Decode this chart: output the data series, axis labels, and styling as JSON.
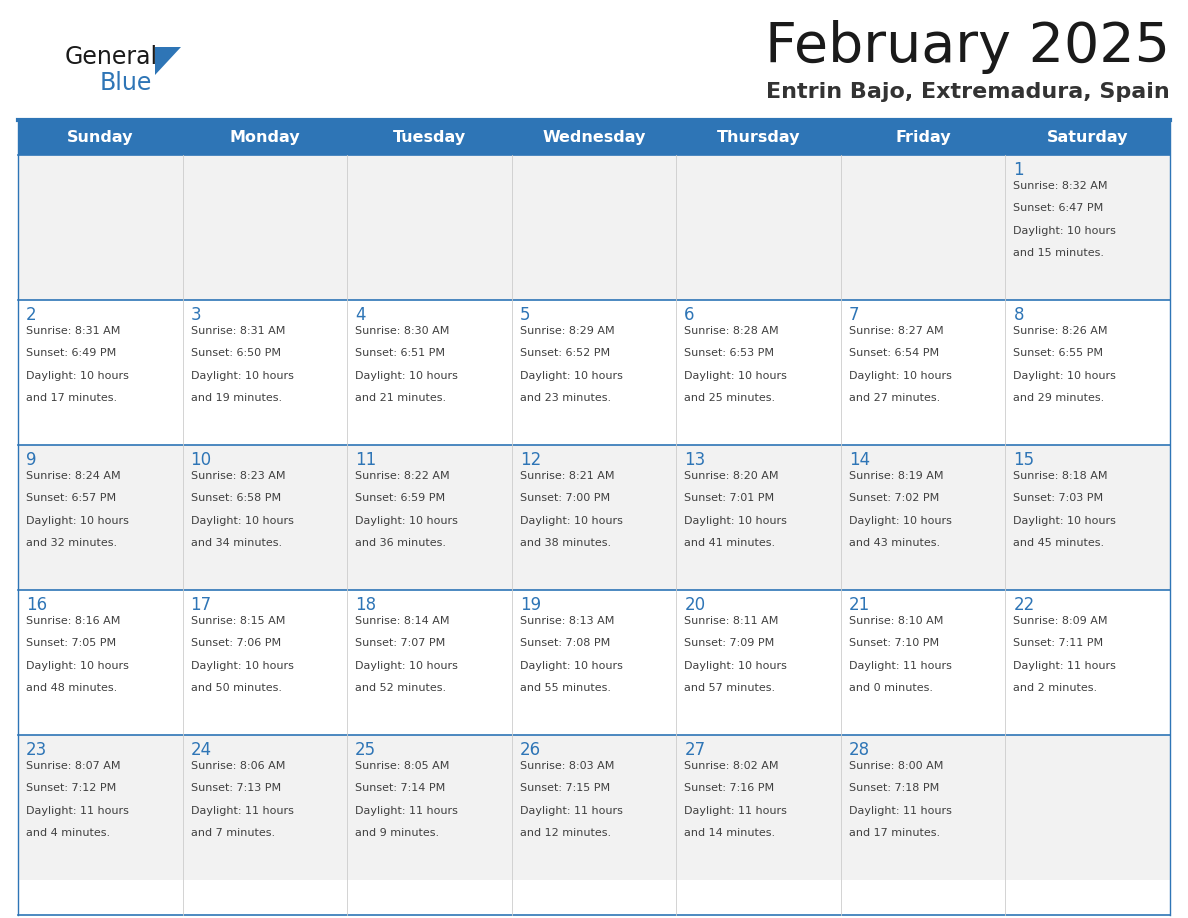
{
  "title": "February 2025",
  "subtitle": "Entrin Bajo, Extremadura, Spain",
  "days_of_week": [
    "Sunday",
    "Monday",
    "Tuesday",
    "Wednesday",
    "Thursday",
    "Friday",
    "Saturday"
  ],
  "header_bg": "#2E75B6",
  "header_text_color": "#FFFFFF",
  "row_odd_bg": "#F2F2F2",
  "row_even_bg": "#FFFFFF",
  "cell_border_color": "#2E75B6",
  "day_number_color": "#2E75B6",
  "cell_text_color": "#404040",
  "title_color": "#1A1A1A",
  "subtitle_color": "#333333",
  "logo_general_color": "#1A1A1A",
  "logo_blue_color": "#2E75B6",
  "logo_triangle_color": "#2E75B6",
  "calendar_data": [
    [
      {
        "day": null,
        "sunrise": null,
        "sunset": null,
        "daylight_line1": null,
        "daylight_line2": null
      },
      {
        "day": null,
        "sunrise": null,
        "sunset": null,
        "daylight_line1": null,
        "daylight_line2": null
      },
      {
        "day": null,
        "sunrise": null,
        "sunset": null,
        "daylight_line1": null,
        "daylight_line2": null
      },
      {
        "day": null,
        "sunrise": null,
        "sunset": null,
        "daylight_line1": null,
        "daylight_line2": null
      },
      {
        "day": null,
        "sunrise": null,
        "sunset": null,
        "daylight_line1": null,
        "daylight_line2": null
      },
      {
        "day": null,
        "sunrise": null,
        "sunset": null,
        "daylight_line1": null,
        "daylight_line2": null
      },
      {
        "day": "1",
        "sunrise": "Sunrise: 8:32 AM",
        "sunset": "Sunset: 6:47 PM",
        "daylight_line1": "Daylight: 10 hours",
        "daylight_line2": "and 15 minutes."
      }
    ],
    [
      {
        "day": "2",
        "sunrise": "Sunrise: 8:31 AM",
        "sunset": "Sunset: 6:49 PM",
        "daylight_line1": "Daylight: 10 hours",
        "daylight_line2": "and 17 minutes."
      },
      {
        "day": "3",
        "sunrise": "Sunrise: 8:31 AM",
        "sunset": "Sunset: 6:50 PM",
        "daylight_line1": "Daylight: 10 hours",
        "daylight_line2": "and 19 minutes."
      },
      {
        "day": "4",
        "sunrise": "Sunrise: 8:30 AM",
        "sunset": "Sunset: 6:51 PM",
        "daylight_line1": "Daylight: 10 hours",
        "daylight_line2": "and 21 minutes."
      },
      {
        "day": "5",
        "sunrise": "Sunrise: 8:29 AM",
        "sunset": "Sunset: 6:52 PM",
        "daylight_line1": "Daylight: 10 hours",
        "daylight_line2": "and 23 minutes."
      },
      {
        "day": "6",
        "sunrise": "Sunrise: 8:28 AM",
        "sunset": "Sunset: 6:53 PM",
        "daylight_line1": "Daylight: 10 hours",
        "daylight_line2": "and 25 minutes."
      },
      {
        "day": "7",
        "sunrise": "Sunrise: 8:27 AM",
        "sunset": "Sunset: 6:54 PM",
        "daylight_line1": "Daylight: 10 hours",
        "daylight_line2": "and 27 minutes."
      },
      {
        "day": "8",
        "sunrise": "Sunrise: 8:26 AM",
        "sunset": "Sunset: 6:55 PM",
        "daylight_line1": "Daylight: 10 hours",
        "daylight_line2": "and 29 minutes."
      }
    ],
    [
      {
        "day": "9",
        "sunrise": "Sunrise: 8:24 AM",
        "sunset": "Sunset: 6:57 PM",
        "daylight_line1": "Daylight: 10 hours",
        "daylight_line2": "and 32 minutes."
      },
      {
        "day": "10",
        "sunrise": "Sunrise: 8:23 AM",
        "sunset": "Sunset: 6:58 PM",
        "daylight_line1": "Daylight: 10 hours",
        "daylight_line2": "and 34 minutes."
      },
      {
        "day": "11",
        "sunrise": "Sunrise: 8:22 AM",
        "sunset": "Sunset: 6:59 PM",
        "daylight_line1": "Daylight: 10 hours",
        "daylight_line2": "and 36 minutes."
      },
      {
        "day": "12",
        "sunrise": "Sunrise: 8:21 AM",
        "sunset": "Sunset: 7:00 PM",
        "daylight_line1": "Daylight: 10 hours",
        "daylight_line2": "and 38 minutes."
      },
      {
        "day": "13",
        "sunrise": "Sunrise: 8:20 AM",
        "sunset": "Sunset: 7:01 PM",
        "daylight_line1": "Daylight: 10 hours",
        "daylight_line2": "and 41 minutes."
      },
      {
        "day": "14",
        "sunrise": "Sunrise: 8:19 AM",
        "sunset": "Sunset: 7:02 PM",
        "daylight_line1": "Daylight: 10 hours",
        "daylight_line2": "and 43 minutes."
      },
      {
        "day": "15",
        "sunrise": "Sunrise: 8:18 AM",
        "sunset": "Sunset: 7:03 PM",
        "daylight_line1": "Daylight: 10 hours",
        "daylight_line2": "and 45 minutes."
      }
    ],
    [
      {
        "day": "16",
        "sunrise": "Sunrise: 8:16 AM",
        "sunset": "Sunset: 7:05 PM",
        "daylight_line1": "Daylight: 10 hours",
        "daylight_line2": "and 48 minutes."
      },
      {
        "day": "17",
        "sunrise": "Sunrise: 8:15 AM",
        "sunset": "Sunset: 7:06 PM",
        "daylight_line1": "Daylight: 10 hours",
        "daylight_line2": "and 50 minutes."
      },
      {
        "day": "18",
        "sunrise": "Sunrise: 8:14 AM",
        "sunset": "Sunset: 7:07 PM",
        "daylight_line1": "Daylight: 10 hours",
        "daylight_line2": "and 52 minutes."
      },
      {
        "day": "19",
        "sunrise": "Sunrise: 8:13 AM",
        "sunset": "Sunset: 7:08 PM",
        "daylight_line1": "Daylight: 10 hours",
        "daylight_line2": "and 55 minutes."
      },
      {
        "day": "20",
        "sunrise": "Sunrise: 8:11 AM",
        "sunset": "Sunset: 7:09 PM",
        "daylight_line1": "Daylight: 10 hours",
        "daylight_line2": "and 57 minutes."
      },
      {
        "day": "21",
        "sunrise": "Sunrise: 8:10 AM",
        "sunset": "Sunset: 7:10 PM",
        "daylight_line1": "Daylight: 11 hours",
        "daylight_line2": "and 0 minutes."
      },
      {
        "day": "22",
        "sunrise": "Sunrise: 8:09 AM",
        "sunset": "Sunset: 7:11 PM",
        "daylight_line1": "Daylight: 11 hours",
        "daylight_line2": "and 2 minutes."
      }
    ],
    [
      {
        "day": "23",
        "sunrise": "Sunrise: 8:07 AM",
        "sunset": "Sunset: 7:12 PM",
        "daylight_line1": "Daylight: 11 hours",
        "daylight_line2": "and 4 minutes."
      },
      {
        "day": "24",
        "sunrise": "Sunrise: 8:06 AM",
        "sunset": "Sunset: 7:13 PM",
        "daylight_line1": "Daylight: 11 hours",
        "daylight_line2": "and 7 minutes."
      },
      {
        "day": "25",
        "sunrise": "Sunrise: 8:05 AM",
        "sunset": "Sunset: 7:14 PM",
        "daylight_line1": "Daylight: 11 hours",
        "daylight_line2": "and 9 minutes."
      },
      {
        "day": "26",
        "sunrise": "Sunrise: 8:03 AM",
        "sunset": "Sunset: 7:15 PM",
        "daylight_line1": "Daylight: 11 hours",
        "daylight_line2": "and 12 minutes."
      },
      {
        "day": "27",
        "sunrise": "Sunrise: 8:02 AM",
        "sunset": "Sunset: 7:16 PM",
        "daylight_line1": "Daylight: 11 hours",
        "daylight_line2": "and 14 minutes."
      },
      {
        "day": "28",
        "sunrise": "Sunrise: 8:00 AM",
        "sunset": "Sunset: 7:18 PM",
        "daylight_line1": "Daylight: 11 hours",
        "daylight_line2": "and 17 minutes."
      },
      {
        "day": null,
        "sunrise": null,
        "sunset": null,
        "daylight_line1": null,
        "daylight_line2": null
      }
    ]
  ]
}
